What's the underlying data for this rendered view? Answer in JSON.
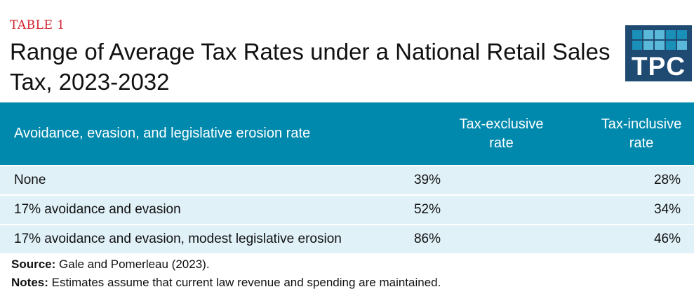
{
  "label": "TABLE 1",
  "title": "Range of Average Tax Rates under a National Retail Sales Tax, 2023-2032",
  "logo": {
    "text": "TPC",
    "bg": "#1f4a72"
  },
  "header_color": "#0089ad",
  "row_color": "#e0f1f8",
  "table": {
    "headers": [
      "Avoidance, evasion, and legislative erosion rate",
      "Tax-exclusive rate",
      "Tax-inclusive rate"
    ],
    "rows": [
      [
        "None",
        "39%",
        "28%"
      ],
      [
        "17% avoidance and evasion",
        "52%",
        "34%"
      ],
      [
        "17% avoidance and evasion, modest legislative erosion",
        "86%",
        "46%"
      ]
    ]
  },
  "source": {
    "label": "Source:",
    "text": "Gale and Pomerleau (2023)."
  },
  "notes": {
    "label": "Notes:",
    "text": "Estimates assume that current law revenue and spending are maintained."
  }
}
